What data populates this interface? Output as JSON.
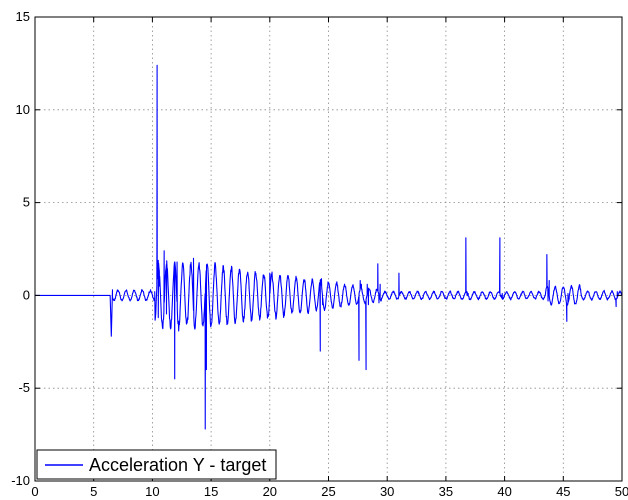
{
  "chart_data": {
    "type": "line",
    "title": "",
    "xlabel": "",
    "ylabel": "",
    "xlim": [
      0,
      50
    ],
    "ylim": [
      -10,
      15
    ],
    "xticks": [
      0,
      5,
      10,
      15,
      20,
      25,
      30,
      35,
      40,
      45,
      50
    ],
    "yticks": [
      -10,
      -5,
      0,
      5,
      10,
      15
    ],
    "grid": true,
    "legend_position": "bottom-left",
    "line_color": "#0000ff",
    "series": [
      {
        "name": "Acceleration Y - target",
        "color": "#0000ff",
        "x": [
          0,
          6.4,
          6.5,
          6.6,
          10.2,
          10.4,
          10.5,
          10.6,
          11.0,
          11.2,
          11.9,
          12.1,
          13.5,
          14.5,
          14.6,
          14.7,
          20.0,
          24.3,
          24.4,
          24.5,
          27.6,
          27.7,
          27.8,
          28.2,
          28.3,
          28.4,
          29.2,
          29.3,
          29.4,
          31.0,
          31.1,
          31.2,
          36.7,
          36.8,
          36.9,
          39.6,
          39.7,
          39.8,
          43.6,
          43.7,
          43.8,
          45.3,
          45.4,
          45.5,
          49.5,
          49.6,
          50
        ],
        "y": [
          0,
          0,
          -2.2,
          0.3,
          0.2,
          12.4,
          -1.2,
          0.5,
          2.4,
          -1.0,
          -4.5,
          1.8,
          2.0,
          -7.2,
          -4.0,
          1.6,
          1.2,
          -3.0,
          0.9,
          -0.5,
          -3.5,
          0.8,
          0.6,
          -4.0,
          0.6,
          -0.5,
          1.7,
          -0.4,
          0.6,
          1.2,
          0.1,
          0.2,
          3.1,
          0.0,
          0.1,
          3.1,
          0.0,
          0.1,
          2.2,
          -0.3,
          0.8,
          -1.4,
          0.1,
          -0.2,
          -0.6,
          0.2,
          0.1
        ]
      }
    ]
  }
}
